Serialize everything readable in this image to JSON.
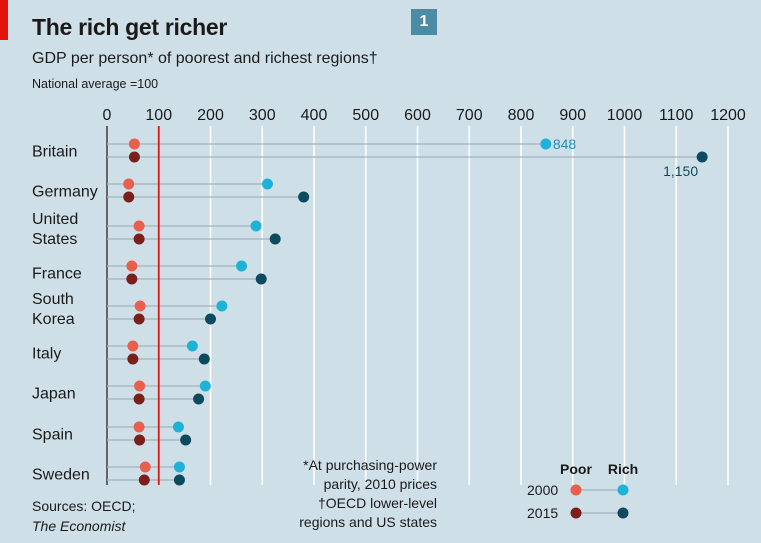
{
  "header": {
    "title": "The rich get richer",
    "subtitle": "GDP per person* of poorest and richest regions†",
    "note": "National average =100",
    "badge": "1"
  },
  "footer": {
    "sources_line": "Sources: OECD;",
    "publication": "The Economist",
    "footnote_lines": [
      "*At purchasing-power",
      "parity, 2010 prices",
      "†OECD lower-level",
      "regions and US states"
    ]
  },
  "colors": {
    "background": "#cfdfe8",
    "poor_2000": "#e8604c",
    "poor_2015": "#7a1f1a",
    "rich_2000": "#1fb2d9",
    "rich_2015": "#0c4a60",
    "reference_line": "#e3120b",
    "connector": "#9fb3bf",
    "gridline": "#ffffff",
    "badge": "#4a8ca6"
  },
  "chart_data": {
    "type": "dot",
    "title": "The rich get richer",
    "subtitle": "GDP per person* of poorest and richest regions†",
    "x_ticks": [
      0,
      100,
      200,
      300,
      400,
      500,
      600,
      700,
      800,
      900,
      1000,
      1100,
      1200
    ],
    "x_range": [
      0,
      1200
    ],
    "reference_value": 100,
    "categories": [
      {
        "label": [
          "Britain"
        ],
        "poor_2000": 53,
        "rich_2000": 848,
        "poor_2015": 53,
        "rich_2015": 1150
      },
      {
        "label": [
          "Germany"
        ],
        "poor_2000": 42,
        "rich_2000": 310,
        "poor_2015": 42,
        "rich_2015": 380
      },
      {
        "label": [
          "United",
          "States"
        ],
        "poor_2000": 62,
        "rich_2000": 288,
        "poor_2015": 62,
        "rich_2015": 325
      },
      {
        "label": [
          "France"
        ],
        "poor_2000": 48,
        "rich_2000": 260,
        "poor_2015": 48,
        "rich_2015": 298
      },
      {
        "label": [
          "South",
          "Korea"
        ],
        "poor_2000": 64,
        "rich_2000": 222,
        "poor_2015": 62,
        "rich_2015": 200
      },
      {
        "label": [
          "Italy"
        ],
        "poor_2000": 50,
        "rich_2000": 165,
        "poor_2015": 50,
        "rich_2015": 188
      },
      {
        "label": [
          "Japan"
        ],
        "poor_2000": 63,
        "rich_2000": 190,
        "poor_2015": 62,
        "rich_2015": 177
      },
      {
        "label": [
          "Spain"
        ],
        "poor_2000": 62,
        "rich_2000": 138,
        "poor_2015": 63,
        "rich_2015": 152
      },
      {
        "label": [
          "Sweden"
        ],
        "poor_2000": 74,
        "rich_2000": 140,
        "poor_2015": 72,
        "rich_2015": 140
      }
    ],
    "value_labels": [
      {
        "category": "Britain",
        "series": "rich_2000",
        "text": "848"
      },
      {
        "category": "Britain",
        "series": "rich_2015",
        "text": "1,150"
      }
    ],
    "legend": {
      "position": "bottom-right",
      "column_headers": [
        "Poor",
        "Rich"
      ],
      "rows": [
        {
          "year": "2000",
          "poor": "poor_2000",
          "rich": "rich_2000"
        },
        {
          "year": "2015",
          "poor": "poor_2015",
          "rich": "rich_2015"
        }
      ]
    }
  }
}
